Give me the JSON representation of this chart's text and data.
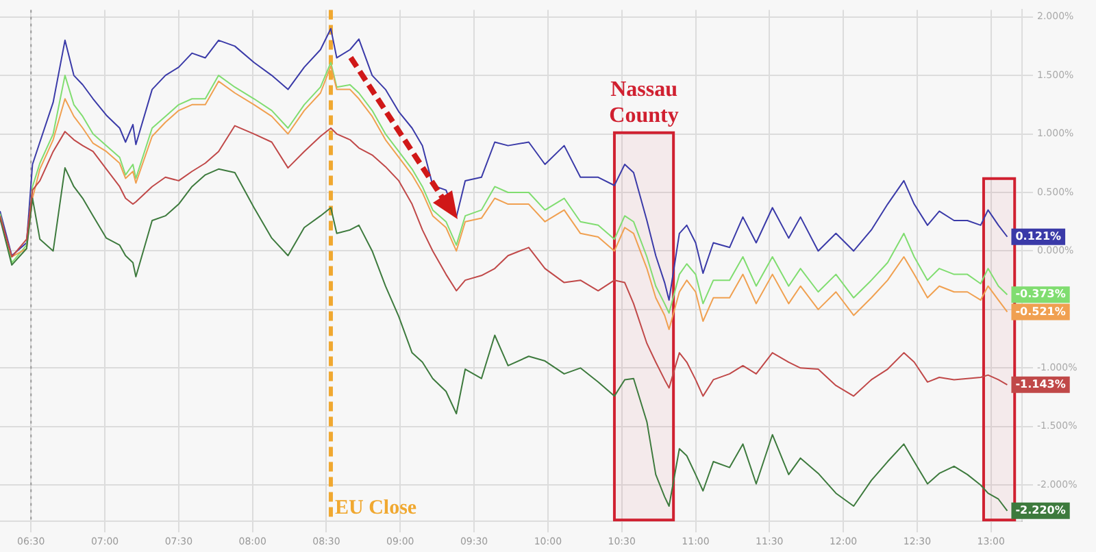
{
  "chart_data": {
    "type": "line",
    "x": [
      6.29,
      6.37,
      6.47,
      6.51,
      6.56,
      6.65,
      6.73,
      6.79,
      6.85,
      6.92,
      7.01,
      7.1,
      7.14,
      7.19,
      7.21,
      7.32,
      7.41,
      7.5,
      7.59,
      7.68,
      7.77,
      7.88,
      8.01,
      8.13,
      8.24,
      8.35,
      8.46,
      8.53,
      8.57,
      8.66,
      8.72,
      8.81,
      8.9,
      8.99,
      9.08,
      9.15,
      9.22,
      9.31,
      9.38,
      9.44,
      9.55,
      9.64,
      9.73,
      9.87,
      9.98,
      10.11,
      10.22,
      10.34,
      10.45,
      10.52,
      10.58,
      10.67,
      10.73,
      10.79,
      10.82,
      10.89,
      10.94,
      11.0,
      11.05,
      11.12,
      11.23,
      11.32,
      11.41,
      11.52,
      11.63,
      11.71,
      11.83,
      11.95,
      12.07,
      12.19,
      12.3,
      12.41,
      12.48,
      12.57,
      12.65,
      12.75,
      12.84,
      12.93,
      12.98,
      13.05,
      13.11
    ],
    "series": [
      {
        "color": "#c04848",
        "values": [
          0.3,
          -0.05,
          0.1,
          0.52,
          0.6,
          0.85,
          1.02,
          0.95,
          0.9,
          0.85,
          0.7,
          0.55,
          0.45,
          0.4,
          0.42,
          0.55,
          0.63,
          0.6,
          0.68,
          0.75,
          0.85,
          1.07,
          1.0,
          0.93,
          0.71,
          0.85,
          0.98,
          1.05,
          1.0,
          0.95,
          0.88,
          0.82,
          0.72,
          0.6,
          0.4,
          0.18,
          0.0,
          -0.2,
          -0.34,
          -0.25,
          -0.21,
          -0.15,
          -0.04,
          0.03,
          -0.15,
          -0.27,
          -0.25,
          -0.34,
          -0.25,
          -0.27,
          -0.45,
          -0.79,
          -0.95,
          -1.1,
          -1.17,
          -0.87,
          -0.95,
          -1.1,
          -1.24,
          -1.1,
          -1.05,
          -0.98,
          -1.05,
          -0.87,
          -0.95,
          -1.0,
          -1.01,
          -1.15,
          -1.24,
          -1.1,
          -1.01,
          -0.87,
          -0.95,
          -1.12,
          -1.08,
          -1.1,
          -1.09,
          -1.08,
          -1.06,
          -1.1,
          -1.143
        ],
        "value_labels": [
          null,
          null,
          null,
          null,
          null,
          null,
          null,
          null,
          null,
          null,
          null,
          null,
          null,
          null,
          null,
          null,
          null,
          null,
          null,
          null,
          null,
          null,
          null,
          null,
          null,
          null,
          null,
          null,
          null,
          null,
          null,
          null,
          null,
          null,
          null,
          null,
          null,
          null,
          null,
          null,
          null,
          null,
          null,
          null,
          null,
          null,
          null,
          null,
          null,
          null,
          null,
          null,
          null,
          null,
          null,
          null,
          null,
          null,
          null,
          null,
          null,
          null,
          null,
          null,
          null,
          null,
          null,
          null,
          null,
          null,
          null,
          null,
          null,
          null,
          null,
          null,
          null,
          null,
          null,
          null,
          "-1.143%"
        ]
      },
      {
        "color": "#3d7a3d",
        "values": [
          0.28,
          -0.12,
          0.02,
          0.45,
          0.1,
          0.0,
          0.71,
          0.55,
          0.45,
          0.3,
          0.11,
          0.05,
          -0.04,
          -0.1,
          -0.22,
          0.26,
          0.3,
          0.4,
          0.55,
          0.65,
          0.7,
          0.67,
          0.37,
          0.11,
          -0.04,
          0.2,
          0.3,
          0.37,
          0.15,
          0.18,
          0.22,
          0.0,
          -0.3,
          -0.56,
          -0.87,
          -0.95,
          -1.09,
          -1.2,
          -1.39,
          -1.01,
          -1.09,
          -0.72,
          -0.98,
          -0.9,
          -0.94,
          -1.05,
          -1.0,
          -1.12,
          -1.24,
          -1.1,
          -1.09,
          -1.46,
          -1.91,
          -2.1,
          -2.18,
          -1.69,
          -1.75,
          -1.91,
          -2.05,
          -1.8,
          -1.85,
          -1.65,
          -1.99,
          -1.57,
          -1.91,
          -1.77,
          -1.9,
          -2.07,
          -2.18,
          -1.96,
          -1.8,
          -1.65,
          -1.8,
          -1.99,
          -1.9,
          -1.84,
          -1.91,
          -2.0,
          -2.07,
          -2.12,
          -2.22
        ],
        "value_labels": [
          null,
          null,
          null,
          null,
          null,
          null,
          null,
          null,
          null,
          null,
          null,
          null,
          null,
          null,
          null,
          null,
          null,
          null,
          null,
          null,
          null,
          null,
          null,
          null,
          null,
          null,
          null,
          null,
          null,
          null,
          null,
          null,
          null,
          null,
          null,
          null,
          null,
          null,
          null,
          null,
          null,
          null,
          null,
          null,
          null,
          null,
          null,
          null,
          null,
          null,
          null,
          null,
          null,
          null,
          null,
          null,
          null,
          null,
          null,
          null,
          null,
          null,
          null,
          null,
          null,
          null,
          null,
          null,
          null,
          null,
          null,
          null,
          null,
          null,
          null,
          null,
          null,
          null,
          null,
          null,
          "-2.220%"
        ]
      },
      {
        "color": "#f0a050",
        "values": [
          0.28,
          -0.05,
          0.02,
          0.45,
          0.7,
          0.95,
          1.3,
          1.15,
          1.05,
          0.92,
          0.85,
          0.75,
          0.62,
          0.68,
          0.58,
          0.98,
          1.1,
          1.2,
          1.25,
          1.25,
          1.45,
          1.35,
          1.25,
          1.15,
          1.0,
          1.2,
          1.35,
          1.58,
          1.38,
          1.38,
          1.3,
          1.15,
          0.95,
          0.8,
          0.65,
          0.5,
          0.3,
          0.2,
          0.0,
          0.25,
          0.28,
          0.45,
          0.4,
          0.4,
          0.25,
          0.35,
          0.15,
          0.12,
          0.0,
          0.2,
          0.15,
          -0.15,
          -0.4,
          -0.55,
          -0.67,
          -0.35,
          -0.25,
          -0.35,
          -0.6,
          -0.4,
          -0.4,
          -0.2,
          -0.45,
          -0.2,
          -0.45,
          -0.3,
          -0.5,
          -0.35,
          -0.55,
          -0.4,
          -0.25,
          -0.05,
          -0.2,
          -0.4,
          -0.3,
          -0.35,
          -0.35,
          -0.42,
          -0.3,
          -0.42,
          -0.521
        ],
        "value_labels": [
          null,
          null,
          null,
          null,
          null,
          null,
          null,
          null,
          null,
          null,
          null,
          null,
          null,
          null,
          null,
          null,
          null,
          null,
          null,
          null,
          null,
          null,
          null,
          null,
          null,
          null,
          null,
          null,
          null,
          null,
          null,
          null,
          null,
          null,
          null,
          null,
          null,
          null,
          null,
          null,
          null,
          null,
          null,
          null,
          null,
          null,
          null,
          null,
          null,
          null,
          null,
          null,
          null,
          null,
          null,
          null,
          null,
          null,
          null,
          null,
          null,
          null,
          null,
          null,
          null,
          null,
          null,
          null,
          null,
          null,
          null,
          null,
          null,
          null,
          null,
          null,
          null,
          null,
          null,
          null,
          "-0.521%"
        ]
      },
      {
        "color": "#80dd70",
        "values": [
          0.32,
          -0.1,
          0.05,
          0.55,
          0.75,
          1.0,
          1.5,
          1.25,
          1.15,
          1.0,
          0.9,
          0.8,
          0.65,
          0.74,
          0.62,
          1.05,
          1.15,
          1.25,
          1.3,
          1.3,
          1.5,
          1.4,
          1.3,
          1.2,
          1.05,
          1.25,
          1.4,
          1.61,
          1.4,
          1.42,
          1.35,
          1.2,
          1.0,
          0.85,
          0.7,
          0.55,
          0.35,
          0.25,
          0.05,
          0.3,
          0.35,
          0.55,
          0.5,
          0.5,
          0.35,
          0.45,
          0.25,
          0.22,
          0.1,
          0.3,
          0.25,
          -0.05,
          -0.3,
          -0.45,
          -0.53,
          -0.2,
          -0.11,
          -0.2,
          -0.45,
          -0.25,
          -0.25,
          -0.05,
          -0.3,
          -0.05,
          -0.3,
          -0.15,
          -0.35,
          -0.2,
          -0.4,
          -0.25,
          -0.1,
          0.15,
          -0.05,
          -0.25,
          -0.15,
          -0.2,
          -0.2,
          -0.28,
          -0.15,
          -0.3,
          -0.373
        ],
        "value_labels": [
          null,
          null,
          null,
          null,
          null,
          null,
          null,
          null,
          null,
          null,
          null,
          null,
          null,
          null,
          null,
          null,
          null,
          null,
          null,
          null,
          null,
          null,
          null,
          null,
          null,
          null,
          null,
          null,
          null,
          null,
          null,
          null,
          null,
          null,
          null,
          null,
          null,
          null,
          null,
          null,
          null,
          null,
          null,
          null,
          null,
          null,
          null,
          null,
          null,
          null,
          null,
          null,
          null,
          null,
          null,
          null,
          null,
          null,
          null,
          null,
          null,
          null,
          null,
          null,
          null,
          null,
          null,
          null,
          null,
          null,
          null,
          null,
          null,
          null,
          null,
          null,
          null,
          null,
          null,
          null,
          "-0.373%"
        ]
      },
      {
        "color": "#3a3aa8",
        "values": [
          0.34,
          -0.04,
          0.07,
          0.74,
          0.93,
          1.27,
          1.8,
          1.5,
          1.42,
          1.3,
          1.16,
          1.05,
          0.93,
          1.08,
          0.91,
          1.38,
          1.5,
          1.57,
          1.69,
          1.65,
          1.8,
          1.75,
          1.61,
          1.5,
          1.38,
          1.57,
          1.72,
          1.9,
          1.65,
          1.72,
          1.81,
          1.5,
          1.38,
          1.19,
          1.05,
          0.9,
          0.56,
          0.52,
          0.29,
          0.6,
          0.63,
          0.93,
          0.9,
          0.93,
          0.74,
          0.9,
          0.63,
          0.63,
          0.56,
          0.74,
          0.67,
          0.26,
          -0.04,
          -0.27,
          -0.42,
          0.15,
          0.22,
          0.07,
          -0.19,
          0.07,
          0.03,
          0.29,
          0.07,
          0.37,
          0.11,
          0.29,
          0.0,
          0.15,
          0.0,
          0.18,
          0.4,
          0.6,
          0.4,
          0.22,
          0.34,
          0.26,
          0.26,
          0.22,
          0.35,
          0.22,
          0.121
        ],
        "value_labels": [
          null,
          null,
          null,
          null,
          null,
          null,
          null,
          null,
          null,
          null,
          null,
          null,
          null,
          null,
          null,
          null,
          null,
          null,
          null,
          null,
          null,
          null,
          null,
          null,
          null,
          null,
          null,
          null,
          null,
          null,
          null,
          null,
          null,
          null,
          null,
          null,
          null,
          null,
          null,
          null,
          null,
          null,
          null,
          null,
          null,
          null,
          null,
          null,
          null,
          null,
          null,
          null,
          null,
          null,
          null,
          null,
          null,
          null,
          null,
          null,
          null,
          null,
          null,
          null,
          null,
          null,
          null,
          null,
          null,
          null,
          null,
          null,
          null,
          null,
          null,
          null,
          null,
          null,
          null,
          null,
          "0.121%"
        ]
      }
    ],
    "xlim": [
      6.29,
      13.21
    ],
    "xticks": [
      {
        "value": 6.5,
        "label": "06:30"
      },
      {
        "value": 7,
        "label": "07:00"
      },
      {
        "value": 7.5,
        "label": "07:30"
      },
      {
        "value": 8,
        "label": "08:00"
      },
      {
        "value": 8.5,
        "label": "08:30"
      },
      {
        "value": 9,
        "label": "09:00"
      },
      {
        "value": 9.5,
        "label": "09:30"
      },
      {
        "value": 10,
        "label": "10:00"
      },
      {
        "value": 10.5,
        "label": "10:30"
      },
      {
        "value": 11,
        "label": "11:00"
      },
      {
        "value": 11.5,
        "label": "11:30"
      },
      {
        "value": 12,
        "label": "12:00"
      },
      {
        "value": 12.5,
        "label": "12:30"
      },
      {
        "value": 13,
        "label": "13:00"
      }
    ],
    "ylim": [
      -2.31,
      2.06
    ],
    "yticks": [
      {
        "value": -2,
        "label": "-2.000%"
      },
      {
        "value": -1.5,
        "label": "-1.500%"
      },
      {
        "value": -1,
        "label": "-1.000%"
      },
      {
        "value": -0.5,
        "label": null
      },
      {
        "value": 0,
        "label": "0.000%"
      },
      {
        "value": 0.5,
        "label": "0.500%"
      },
      {
        "value": 1,
        "label": "1.000%"
      },
      {
        "value": 1.5,
        "label": "1.500%"
      },
      {
        "value": 2,
        "label": "2.000%"
      }
    ],
    "grid": true,
    "marker": "none",
    "line_style": "solid",
    "legend": false,
    "ref_lines": [
      {
        "axis": "x",
        "value": 8.53,
        "label": "EU Close",
        "color": "#f0a830",
        "line_style": "dashed"
      },
      {
        "axis": "x",
        "value": 6.5,
        "color": "#999999",
        "line_style": "dotted"
      }
    ],
    "bands": [
      {
        "axis": "x",
        "from": 10.45,
        "to": 10.85,
        "label": "Nassau County",
        "color": "#d02030"
      },
      {
        "axis": "x",
        "from": 12.95,
        "to": 13.16,
        "color": "#d02030"
      }
    ]
  }
}
